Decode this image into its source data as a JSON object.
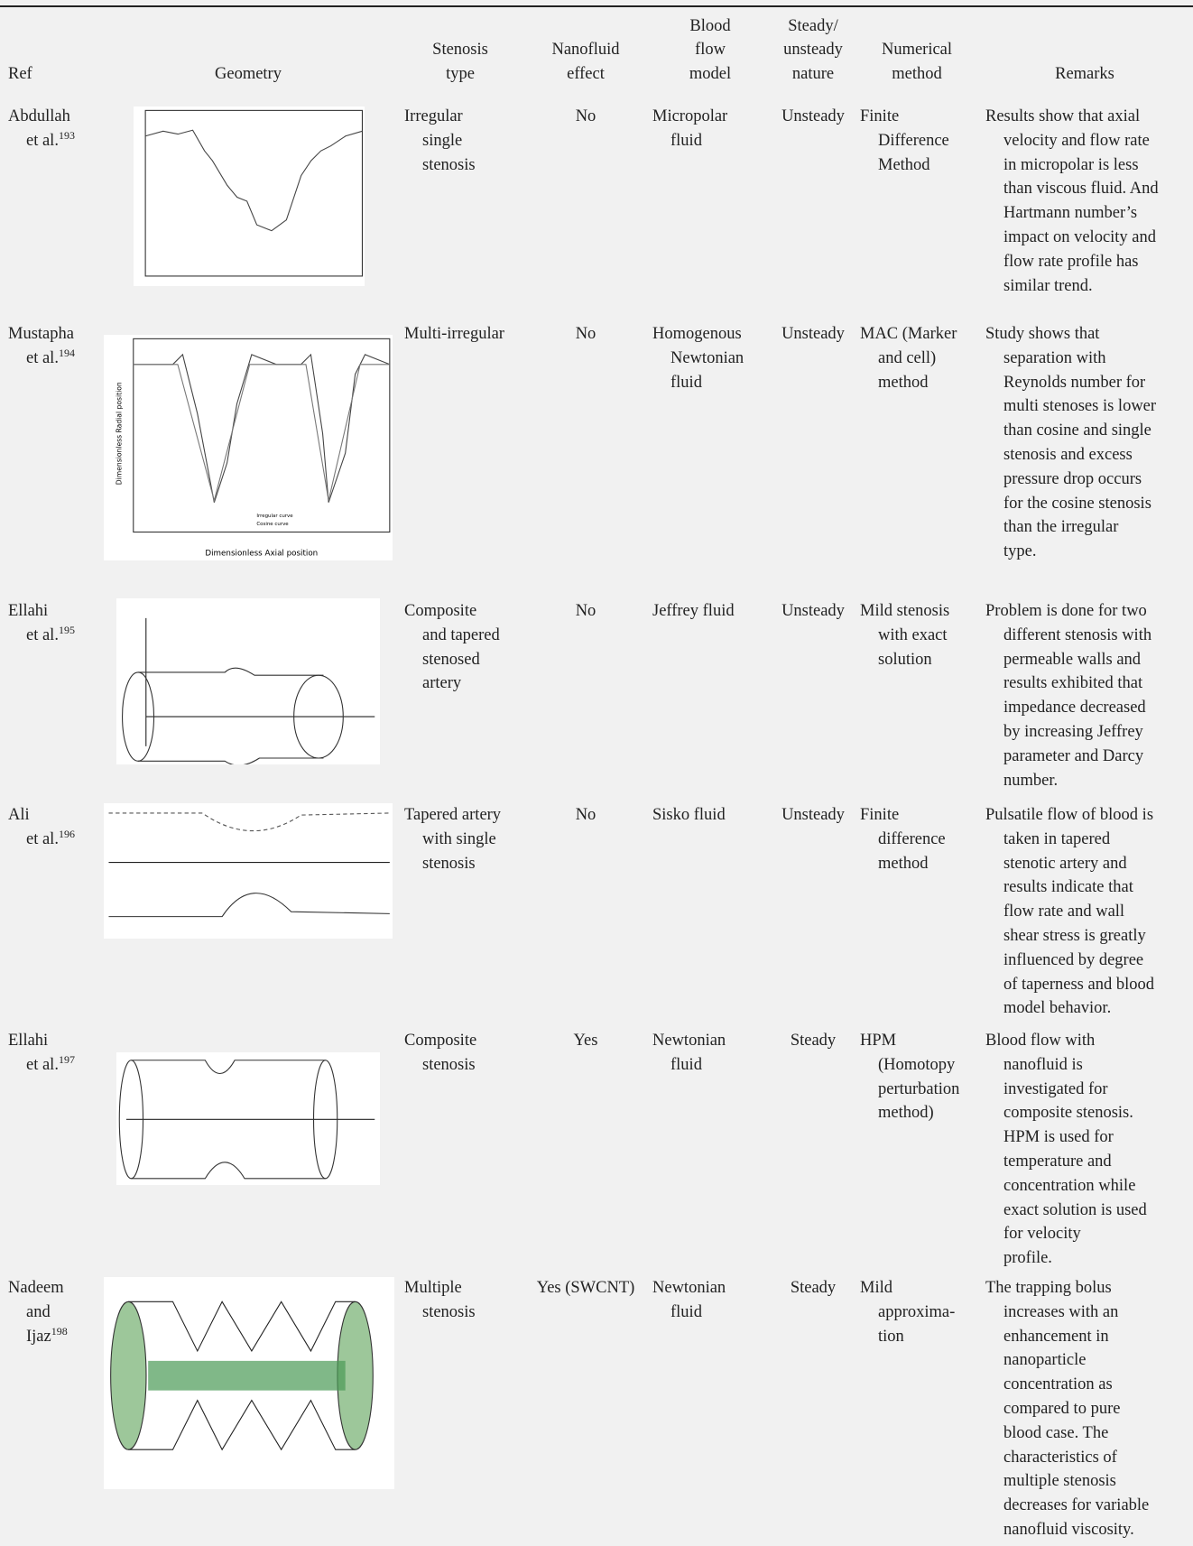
{
  "table": {
    "header": [
      [
        "Ref"
      ],
      [
        "Geometry"
      ],
      [
        "Stenosis",
        "type"
      ],
      [
        "Nanofluid",
        "effect"
      ],
      [
        "Blood",
        "flow",
        "model"
      ],
      [
        "Steady/",
        "unsteady",
        "nature"
      ],
      [
        "Numerical",
        "method"
      ],
      [
        "Remarks"
      ]
    ],
    "rows": [
      {
        "ref": [
          "Abdullah",
          "et al."
        ],
        "cite": "193",
        "stenosis": [
          "Irregular",
          "single",
          "stenosis"
        ],
        "nanofluid": "No",
        "model": [
          "Micropolar",
          "fluid"
        ],
        "nature": "Unsteady",
        "method": [
          "Finite",
          "Difference",
          "Method"
        ],
        "remarks": [
          "Results show that axial",
          "velocity and flow rate",
          "in micropolar is less",
          "than viscous fluid. And",
          "Hartmann number’s",
          "impact on velocity and",
          "flow rate profile has",
          "similar trend."
        ]
      },
      {
        "ref": [
          "Mustapha",
          "et al."
        ],
        "cite": "194",
        "stenosis": [
          "Multi-irregular"
        ],
        "nanofluid": "No",
        "model": [
          "Homogenous",
          "Newtonian",
          "fluid"
        ],
        "nature": "Unsteady",
        "method": [
          "MAC (Marker",
          "and cell)",
          "method"
        ],
        "remarks": [
          "Study shows that",
          "separation with",
          "Reynolds number for",
          "multi stenoses is lower",
          "than cosine and single",
          "stenosis and excess",
          "pressure drop occurs",
          "for the cosine stenosis",
          "than the irregular",
          "type."
        ],
        "figure": {
          "xlabel": "Dimensionless Axial position",
          "ylabel": "Dimensionless Radial position",
          "legend": [
            "Irregular curve",
            "Cosine curve"
          ]
        }
      },
      {
        "ref": [
          "Ellahi",
          "et al."
        ],
        "cite": "195",
        "stenosis": [
          "Composite",
          "and tapered",
          "stenosed",
          "artery"
        ],
        "nanofluid": "No",
        "model": [
          "Jeffrey fluid"
        ],
        "nature": "Unsteady",
        "method": [
          "Mild stenosis",
          "with exact",
          "solution"
        ],
        "remarks": [
          "Problem is done for two",
          "different stenosis with",
          "permeable walls and",
          "results exhibited that",
          "impedance decreased",
          "by increasing Jeffrey",
          "parameter and Darcy",
          "number."
        ]
      },
      {
        "ref": [
          "Ali",
          "et al."
        ],
        "cite": "196",
        "stenosis": [
          "Tapered artery",
          "with single",
          "stenosis"
        ],
        "nanofluid": "No",
        "model": [
          "Sisko fluid"
        ],
        "nature": "Unsteady",
        "method": [
          "Finite",
          "difference",
          "method"
        ],
        "remarks": [
          "Pulsatile flow of blood is",
          "taken in tapered",
          "stenotic artery and",
          "results indicate that",
          "flow rate and wall",
          "shear stress is greatly",
          "influenced by degree",
          "of taperness and blood",
          "model behavior."
        ]
      },
      {
        "ref": [
          "Ellahi",
          "et al."
        ],
        "cite": "197",
        "stenosis": [
          "Composite",
          "stenosis"
        ],
        "nanofluid": "Yes",
        "model": [
          "Newtonian",
          "fluid"
        ],
        "nature": "Steady",
        "method": [
          "HPM",
          "(Homotopy",
          "perturbation",
          "method)"
        ],
        "remarks": [
          "Blood flow with",
          "nanofluid is",
          "investigated for",
          "composite stenosis.",
          "HPM is used for",
          "temperature and",
          "concentration while",
          "exact solution is used",
          "for velocity",
          "profile."
        ]
      },
      {
        "ref": [
          "Nadeem",
          "and",
          "Ijaz"
        ],
        "cite": "198",
        "stenosis": [
          "Multiple",
          "stenosis"
        ],
        "nanofluid": "Yes (SWCNT)",
        "model": [
          "Newtonian",
          "fluid"
        ],
        "nature": "Steady",
        "method": [
          "Mild",
          "approxima-",
          "tion"
        ],
        "remarks": [
          "The trapping bolus",
          "increases with an",
          "enhancement in",
          "nanoparticle",
          "concentration as",
          "compared to pure",
          "blood case. The",
          "characteristics of",
          "multiple stenosis",
          "decreases for variable",
          "nanofluid viscosity."
        ]
      }
    ]
  }
}
